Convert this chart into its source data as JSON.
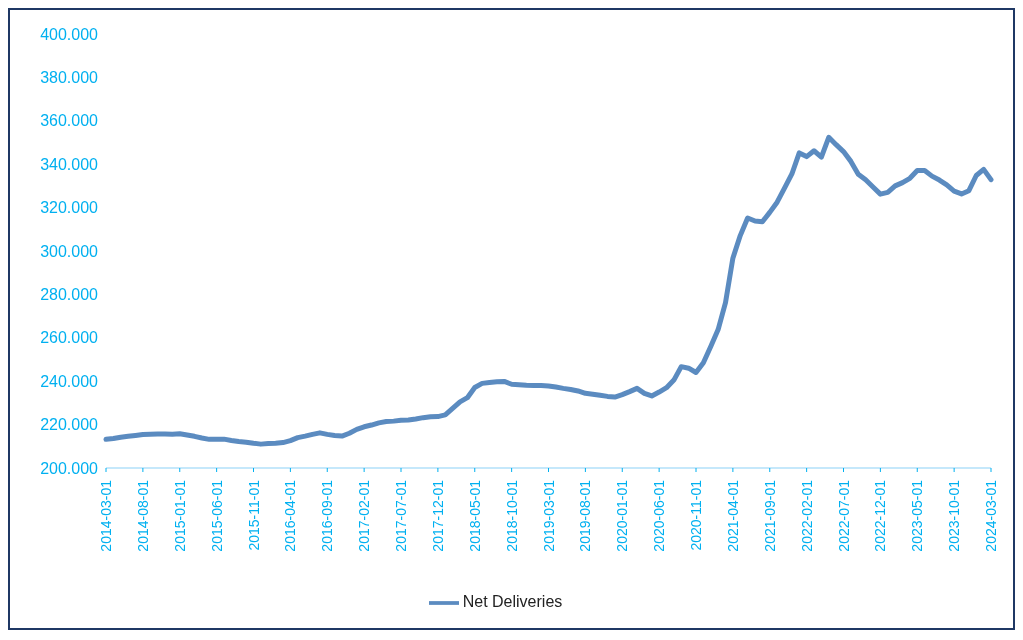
{
  "chart_data": {
    "type": "line",
    "categories": [
      "2014-03-01",
      null,
      null,
      null,
      null,
      "2014-08-01",
      null,
      null,
      null,
      null,
      "2015-01-01",
      null,
      null,
      null,
      null,
      "2015-06-01",
      null,
      null,
      null,
      null,
      "2015-11-01",
      null,
      null,
      null,
      null,
      "2016-04-01",
      null,
      null,
      null,
      null,
      "2016-09-01",
      null,
      null,
      null,
      null,
      "2017-02-01",
      null,
      null,
      null,
      null,
      "2017-07-01",
      null,
      null,
      null,
      null,
      "2017-12-01",
      null,
      null,
      null,
      null,
      "2018-05-01",
      null,
      null,
      null,
      null,
      "2018-10-01",
      null,
      null,
      null,
      null,
      "2019-03-01",
      null,
      null,
      null,
      null,
      "2019-08-01",
      null,
      null,
      null,
      null,
      "2020-01-01",
      null,
      null,
      null,
      null,
      "2020-06-01",
      null,
      null,
      null,
      null,
      "2020-11-01",
      null,
      null,
      null,
      null,
      "2021-04-01",
      null,
      null,
      null,
      null,
      "2021-09-01",
      null,
      null,
      null,
      null,
      "2022-02-01",
      null,
      null,
      null,
      null,
      "2022-07-01",
      null,
      null,
      null,
      null,
      "2022-12-01",
      null,
      null,
      null,
      null,
      "2023-05-01",
      null,
      null,
      null,
      null,
      "2023-10-01",
      null,
      null,
      null,
      null,
      "2024-03-01"
    ],
    "series": [
      {
        "name": "Net Deliveries",
        "color": "#5b8bc0",
        "values": [
          213.2,
          213.6,
          214.2,
          214.6,
          215.0,
          215.4,
          215.6,
          215.7,
          215.7,
          215.6,
          215.8,
          215.2,
          214.6,
          213.8,
          213.2,
          213.2,
          213.3,
          212.7,
          212.2,
          211.9,
          211.4,
          211.0,
          211.3,
          211.4,
          211.7,
          212.6,
          214.0,
          214.7,
          215.5,
          216.2,
          215.5,
          215.0,
          214.7,
          216.0,
          217.8,
          219.0,
          219.8,
          220.8,
          221.4,
          221.6,
          222.0,
          222.1,
          222.6,
          223.2,
          223.6,
          223.7,
          224.5,
          227.5,
          230.5,
          232.4,
          237.1,
          239.0,
          239.4,
          239.7,
          239.9,
          238.6,
          238.4,
          238.1,
          238.0,
          238.0,
          237.8,
          237.3,
          236.7,
          236.2,
          235.5,
          234.4,
          234.0,
          233.5,
          233.0,
          232.7,
          233.8,
          235.2,
          236.7,
          234.4,
          233.2,
          235.0,
          237.0,
          240.5,
          246.7,
          246.0,
          244.0,
          248.5,
          256.0,
          263.8,
          276.2,
          296.7,
          307.1,
          315.2,
          313.8,
          313.5,
          317.8,
          322.5,
          329.0,
          335.5,
          345.2,
          343.5,
          346.2,
          343.3,
          352.4,
          349.0,
          345.8,
          341.3,
          335.4,
          332.8,
          329.5,
          326.2,
          327.0,
          330.0,
          331.5,
          333.5,
          337.1,
          337.1,
          334.5,
          332.7,
          330.5,
          327.6,
          326.3,
          327.8,
          334.8,
          337.6,
          332.9
        ]
      }
    ],
    "ylim": [
      200,
      400
    ],
    "yticks": [
      {
        "value": 200,
        "label": "200.000"
      },
      {
        "value": 220,
        "label": "220.000"
      },
      {
        "value": 240,
        "label": "240.000"
      },
      {
        "value": 260,
        "label": "260.000"
      },
      {
        "value": 280,
        "label": "280.000"
      },
      {
        "value": 300,
        "label": "300.000"
      },
      {
        "value": 320,
        "label": "320.000"
      },
      {
        "value": 340,
        "label": "340.000"
      },
      {
        "value": 360,
        "label": "360.000"
      },
      {
        "value": 380,
        "label": "380.000"
      },
      {
        "value": 400,
        "label": "400.000"
      }
    ],
    "legend": "bottom",
    "marker": "none",
    "line_style": "solid"
  }
}
